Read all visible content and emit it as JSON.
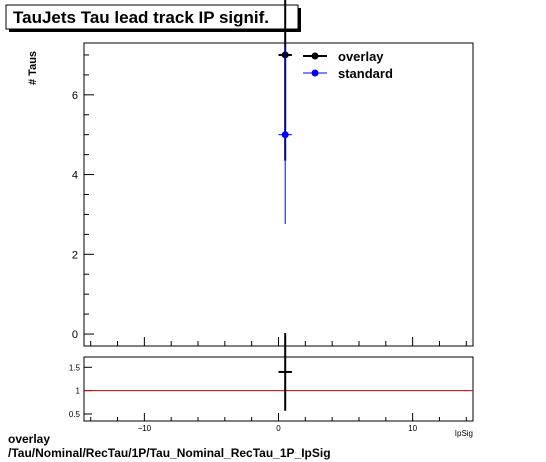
{
  "chart_data": [
    {
      "type": "scatter",
      "title": "TauJets Tau lead track IP signif.",
      "ylabel": "# Taus",
      "xlabel": "IpSig",
      "xlim": [
        -14.5,
        14.5
      ],
      "ylim": [
        -0.3,
        7.3
      ],
      "yticks": [
        0,
        2,
        4,
        6
      ],
      "legend": "top-right",
      "series": [
        {
          "name": "overlay",
          "color": "#000000",
          "points": [
            {
              "x": 0.5,
              "y": 7.0,
              "yerr": 2.65,
              "xerr": 0.5
            }
          ]
        },
        {
          "name": "standard",
          "color": "#0000ff",
          "points": [
            {
              "x": 0.5,
              "y": 5.0,
              "yerr": 2.24,
              "xerr": 0.5
            }
          ]
        }
      ]
    },
    {
      "type": "scatter",
      "title": "",
      "xlim": [
        -14.5,
        14.5
      ],
      "ylim": [
        0.35,
        1.72
      ],
      "xticks": [
        -10,
        0,
        10
      ],
      "yticks": [
        0.5,
        1,
        1.5
      ],
      "reference_line": {
        "y": 1,
        "color": "#cc0000"
      },
      "series": [
        {
          "name": "",
          "color": "#000000",
          "points": [
            {
              "x": 0.5,
              "y": 1.4,
              "yerr": 0.83,
              "xerr": 0.5
            }
          ]
        }
      ]
    }
  ],
  "footer": {
    "line1": "overlay",
    "line2": "/Tau/Nominal/RecTau/1P/Tau_Nominal_RecTau_1P_IpSig"
  }
}
